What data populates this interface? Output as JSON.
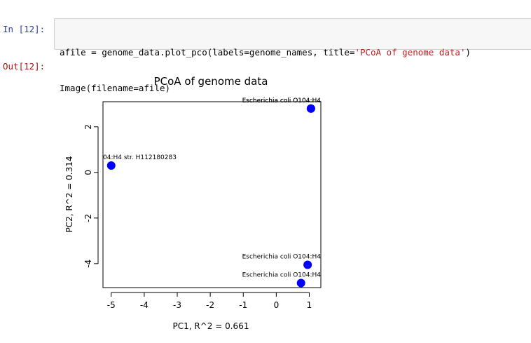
{
  "notebook": {
    "input_prompt": "In [12]:",
    "output_prompt": "Out[12]:",
    "code_lines": [
      {
        "before": "afile = genome_data.plot_pco(labels=genome_names, title=",
        "string": "'PCoA of genome data'",
        "after": ")"
      },
      {
        "before": "Image(filename=afile)",
        "string": "",
        "after": ""
      }
    ]
  },
  "chart_data": {
    "type": "scatter",
    "title": "PCoA of genome data",
    "xlabel": "PC1, R^2 = 0.661",
    "ylabel": "PC2, R^2 = 0.314",
    "xlim": [
      -5.25,
      1.35
    ],
    "ylim": [
      -5.05,
      3.1
    ],
    "xticks": [
      -5,
      -4,
      -3,
      -2,
      -1,
      0,
      1
    ],
    "yticks": [
      -4,
      -2,
      0,
      2
    ],
    "point_color": "#0000ff",
    "grid": false,
    "points": [
      {
        "x": -5.0,
        "y": 0.3,
        "label": "04:H4 str. H112180283"
      },
      {
        "x": 1.05,
        "y": 2.8,
        "label": "Escherichia coli O104:H4"
      },
      {
        "x": 1.05,
        "y": 2.8,
        "label": "Escherichia coli O104:H4"
      },
      {
        "x": 0.95,
        "y": -4.05,
        "label": "Escherichia coli O104:H4"
      },
      {
        "x": 0.75,
        "y": -4.85,
        "label": "Escherichia coli O104:H4"
      }
    ]
  }
}
